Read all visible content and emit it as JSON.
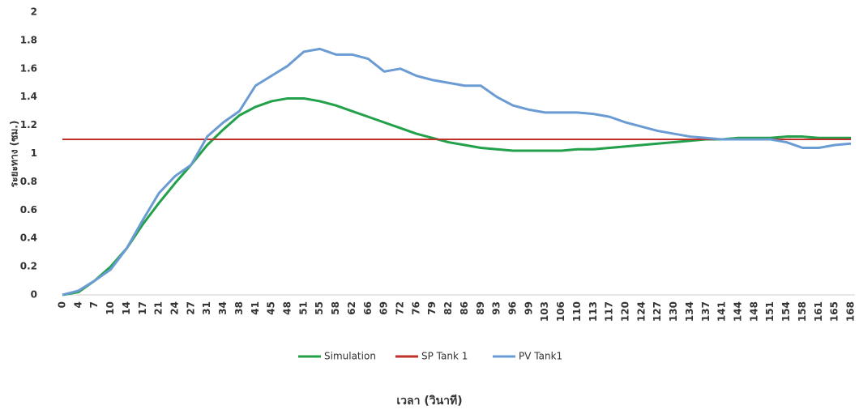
{
  "chart_data": {
    "type": "line",
    "x_label": "เวลา (วินาที)",
    "y_label": "ระยะทาง (ซม.)",
    "categories": [
      "0",
      "4",
      "7",
      "10",
      "14",
      "17",
      "21",
      "24",
      "27",
      "31",
      "34",
      "38",
      "41",
      "45",
      "48",
      "51",
      "55",
      "58",
      "62",
      "66",
      "69",
      "72",
      "76",
      "79",
      "82",
      "86",
      "89",
      "93",
      "96",
      "99",
      "103",
      "106",
      "110",
      "113",
      "117",
      "120",
      "124",
      "127",
      "130",
      "134",
      "137",
      "141",
      "144",
      "148",
      "151",
      "154",
      "158",
      "161",
      "165",
      "168"
    ],
    "series": [
      {
        "name": "Simulation",
        "color": "#22a04a",
        "values": [
          0,
          0.02,
          0.1,
          0.2,
          0.33,
          0.5,
          0.65,
          0.79,
          0.92,
          1.06,
          1.17,
          1.27,
          1.33,
          1.37,
          1.39,
          1.39,
          1.37,
          1.34,
          1.3,
          1.26,
          1.22,
          1.18,
          1.14,
          1.11,
          1.08,
          1.06,
          1.04,
          1.03,
          1.02,
          1.02,
          1.02,
          1.02,
          1.03,
          1.03,
          1.04,
          1.05,
          1.06,
          1.07,
          1.08,
          1.09,
          1.1,
          1.1,
          1.11,
          1.11,
          1.11,
          1.12,
          1.12,
          1.11,
          1.11,
          1.11
        ]
      },
      {
        "name": "SP Tank 1",
        "color": "#c0302a",
        "values": [
          1.1,
          1.1,
          1.1,
          1.1,
          1.1,
          1.1,
          1.1,
          1.1,
          1.1,
          1.1,
          1.1,
          1.1,
          1.1,
          1.1,
          1.1,
          1.1,
          1.1,
          1.1,
          1.1,
          1.1,
          1.1,
          1.1,
          1.1,
          1.1,
          1.1,
          1.1,
          1.1,
          1.1,
          1.1,
          1.1,
          1.1,
          1.1,
          1.1,
          1.1,
          1.1,
          1.1,
          1.1,
          1.1,
          1.1,
          1.1,
          1.1,
          1.1,
          1.1,
          1.1,
          1.1,
          1.1,
          1.1,
          1.1,
          1.1,
          1.1
        ]
      },
      {
        "name": "PV Tank1",
        "color": "#6a9bd3",
        "values": [
          0,
          0.03,
          0.1,
          0.18,
          0.33,
          0.53,
          0.72,
          0.84,
          0.92,
          1.12,
          1.22,
          1.3,
          1.48,
          1.55,
          1.62,
          1.72,
          1.74,
          1.7,
          1.7,
          1.67,
          1.58,
          1.6,
          1.55,
          1.52,
          1.5,
          1.48,
          1.48,
          1.4,
          1.34,
          1.31,
          1.29,
          1.29,
          1.29,
          1.28,
          1.26,
          1.22,
          1.19,
          1.16,
          1.14,
          1.12,
          1.11,
          1.1,
          1.1,
          1.1,
          1.1,
          1.08,
          1.04,
          1.04,
          1.06,
          1.07
        ]
      }
    ],
    "ylim": [
      0,
      2
    ],
    "yticks": [
      0,
      0.2,
      0.4,
      0.6,
      0.8,
      1,
      1.2,
      1.4,
      1.6,
      1.8,
      2
    ],
    "grid": false,
    "legend": "bottom"
  }
}
